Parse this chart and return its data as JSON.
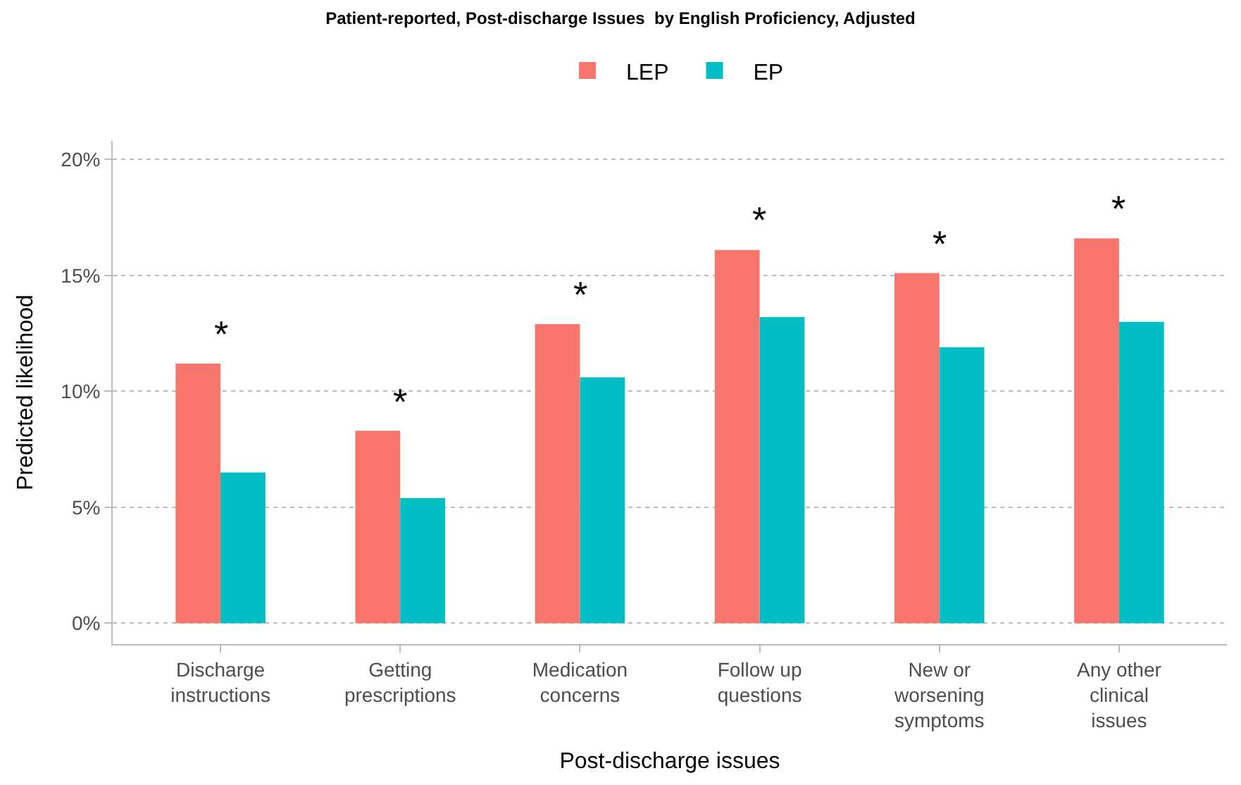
{
  "chart_data": {
    "type": "bar",
    "title": "Patient-reported, Post-discharge Issues  by English Proficiency, Adjusted",
    "xlabel": "Post-discharge issues",
    "ylabel": "Predicted likelihood",
    "categories": [
      "Discharge\ninstructions",
      "Getting\nprescriptions",
      "Medication\nconcerns",
      "Follow up\nquestions",
      "New or\nworsening\nsymptoms",
      "Any other\nclinical\nissues"
    ],
    "series": [
      {
        "name": "LEP",
        "color": "#f8766d",
        "values": [
          11.2,
          8.3,
          12.9,
          16.1,
          15.1,
          16.6
        ]
      },
      {
        "name": "EP",
        "color": "#00bfc4",
        "values": [
          6.5,
          5.4,
          10.6,
          13.2,
          11.9,
          13.0
        ]
      }
    ],
    "ylim": [
      -0.9,
      20.8
    ],
    "yticks": [
      {
        "value": 0,
        "label": "0%"
      },
      {
        "value": 5,
        "label": "5%"
      },
      {
        "value": 10,
        "label": "10%"
      },
      {
        "value": 15,
        "label": "15%"
      },
      {
        "value": 20,
        "label": "20%"
      }
    ],
    "annotations": [
      "*",
      "*",
      "*",
      "*",
      "*",
      "*"
    ],
    "grid": "y",
    "legend": "top"
  }
}
